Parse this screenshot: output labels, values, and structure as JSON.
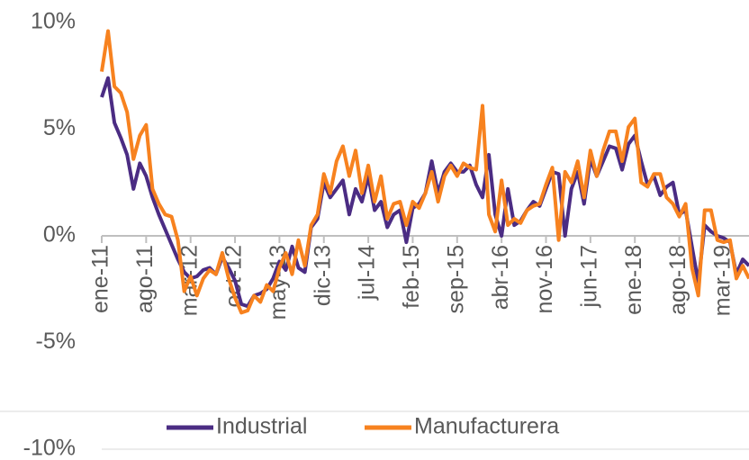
{
  "chart_data": {
    "type": "line",
    "categories": [
      "ene-11",
      null,
      null,
      null,
      null,
      null,
      null,
      "ago-11",
      null,
      null,
      null,
      null,
      null,
      null,
      "mar-12",
      null,
      null,
      null,
      null,
      null,
      null,
      "oct-12",
      null,
      null,
      null,
      null,
      null,
      null,
      "may-13",
      null,
      null,
      null,
      null,
      null,
      null,
      "dic-13",
      null,
      null,
      null,
      null,
      null,
      null,
      "jul-14",
      null,
      null,
      null,
      null,
      null,
      null,
      "feb-15",
      null,
      null,
      null,
      null,
      null,
      null,
      "sep-15",
      null,
      null,
      null,
      null,
      null,
      null,
      "abr-16",
      null,
      null,
      null,
      null,
      null,
      null,
      "nov-16",
      null,
      null,
      null,
      null,
      null,
      null,
      "jun-17",
      null,
      null,
      null,
      null,
      null,
      null,
      "ene-18",
      null,
      null,
      null,
      null,
      null,
      null,
      "ago-18",
      null,
      null,
      null,
      null,
      null,
      null,
      "mar-19",
      null,
      null,
      null,
      null
    ],
    "series": [
      {
        "name": "Industrial",
        "color": "#4b2c83",
        "values": [
          6.5,
          7.4,
          5.3,
          4.6,
          3.8,
          2.2,
          3.4,
          2.8,
          1.8,
          1.0,
          0.3,
          -0.4,
          -1.1,
          -1.7,
          -2.0,
          -1.9,
          -1.6,
          -1.5,
          -1.8,
          -1.0,
          -1.5,
          -2.1,
          -3.2,
          -3.3,
          -2.8,
          -2.7,
          -2.5,
          -2.0,
          -1.2,
          -1.6,
          -0.5,
          -1.5,
          -1.7,
          0.4,
          0.8,
          2.5,
          1.8,
          2.2,
          2.6,
          1.0,
          2.2,
          1.6,
          2.8,
          1.2,
          1.6,
          0.4,
          1.0,
          1.2,
          -0.3,
          1.3,
          1.5,
          2.0,
          3.5,
          2.0,
          3.0,
          3.4,
          3.0,
          3.0,
          3.3,
          2.4,
          1.8,
          3.8,
          1.0,
          0.0,
          2.2,
          0.5,
          0.7,
          1.2,
          1.6,
          1.4,
          2.2,
          3.0,
          2.9,
          0.0,
          2.2,
          3.0,
          1.5,
          3.6,
          2.8,
          3.5,
          4.2,
          4.1,
          3.1,
          4.3,
          4.7,
          3.5,
          2.4,
          2.8,
          1.9,
          2.3,
          2.5,
          1.0,
          1.2,
          -0.5,
          -2.2,
          0.5,
          0.2,
          0.0,
          -0.1,
          -0.3,
          -1.8,
          -1.1,
          -1.4
        ]
      },
      {
        "name": "Manufacturera",
        "color": "#f7821f",
        "values": [
          7.7,
          9.6,
          7.0,
          6.7,
          5.8,
          3.6,
          4.7,
          5.2,
          2.2,
          1.5,
          1.0,
          0.9,
          -0.2,
          -2.6,
          -1.9,
          -2.8,
          -2.0,
          -1.6,
          -1.8,
          -0.8,
          -2.0,
          -2.9,
          -3.6,
          -3.5,
          -2.8,
          -3.1,
          -2.3,
          -2.6,
          -1.5,
          -0.8,
          -1.8,
          -0.2,
          -1.4,
          0.5,
          1.0,
          2.9,
          2.0,
          3.5,
          4.2,
          2.8,
          4.0,
          2.0,
          3.3,
          1.6,
          2.8,
          0.8,
          1.5,
          1.6,
          0.5,
          1.6,
          1.3,
          2.0,
          3.0,
          1.6,
          2.8,
          3.3,
          2.8,
          3.4,
          3.2,
          3.1,
          6.1,
          1.0,
          0.2,
          2.6,
          0.5,
          0.8,
          0.6,
          1.2,
          1.4,
          1.5,
          2.4,
          3.2,
          -0.2,
          3.0,
          2.5,
          3.5,
          1.8,
          4.0,
          2.8,
          4.0,
          4.9,
          4.9,
          3.5,
          5.1,
          5.5,
          2.5,
          2.3,
          2.9,
          2.9,
          1.8,
          1.5,
          0.9,
          1.5,
          -1.5,
          -2.8,
          1.2,
          1.2,
          -0.2,
          -0.3,
          -0.2,
          -2.0,
          -1.4,
          -2.0
        ]
      }
    ],
    "ylim": [
      -10,
      10
    ],
    "yticks": [
      {
        "value": 10,
        "label": "10%"
      },
      {
        "value": 5,
        "label": "5%"
      },
      {
        "value": 0,
        "label": "0%"
      },
      {
        "value": -5,
        "label": "-5%"
      },
      {
        "value": -10,
        "label": "-10%"
      }
    ],
    "legend": "bottom"
  }
}
